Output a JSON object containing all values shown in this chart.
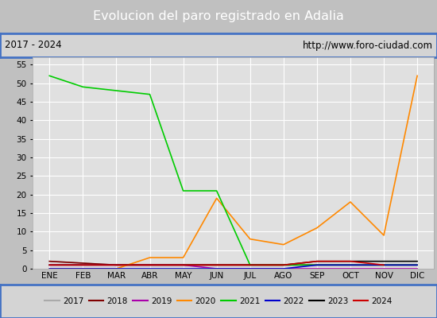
{
  "title": "Evolucion del paro registrado en Adalia",
  "subtitle_left": "2017 - 2024",
  "subtitle_right": "http://www.foro-ciudad.com",
  "months": [
    "ENE",
    "FEB",
    "MAR",
    "ABR",
    "MAY",
    "JUN",
    "JUL",
    "AGO",
    "SEP",
    "OCT",
    "NOV",
    "DIC"
  ],
  "ylim": [
    0,
    57
  ],
  "yticks": [
    0,
    5,
    10,
    15,
    20,
    25,
    30,
    35,
    40,
    45,
    50,
    55
  ],
  "series": {
    "2017": {
      "color": "#aaaaaa",
      "values": [
        2,
        1.5,
        1,
        1,
        1,
        1,
        1,
        1,
        1,
        1,
        1,
        1
      ]
    },
    "2018": {
      "color": "#800000",
      "values": [
        2,
        1.5,
        1,
        1,
        1,
        1,
        1,
        1,
        1,
        1,
        1,
        1
      ]
    },
    "2019": {
      "color": "#aa00aa",
      "values": [
        1,
        1,
        1,
        1,
        1,
        0,
        0,
        0,
        0,
        0,
        0,
        0
      ]
    },
    "2020": {
      "color": "#ff8800",
      "values": [
        0,
        0,
        0,
        3,
        3,
        19,
        8,
        6.5,
        11,
        18,
        9,
        52
      ]
    },
    "2021": {
      "color": "#00cc00",
      "values": [
        52,
        49,
        48,
        47,
        21,
        21,
        1,
        1,
        1,
        1,
        1,
        1
      ]
    },
    "2022": {
      "color": "#0000cc",
      "values": [
        0,
        0,
        0,
        0,
        0,
        0,
        0,
        0,
        1,
        1,
        1,
        1
      ]
    },
    "2023": {
      "color": "#000000",
      "values": [
        1,
        1,
        1,
        1,
        1,
        1,
        1,
        1,
        2,
        2,
        2,
        2
      ]
    },
    "2024": {
      "color": "#cc0000",
      "values": [
        1,
        1,
        1,
        1,
        1,
        1,
        1,
        1,
        2,
        2,
        1,
        null
      ]
    }
  },
  "title_bg_color": "#4472c4",
  "title_font_color": "#ffffff",
  "subtitle_bg_color": "#d4d4d4",
  "plot_bg_color": "#e0e0e0",
  "grid_color": "#ffffff",
  "border_color": "#4472c4",
  "legend_bg_color": "#d4d4d4"
}
